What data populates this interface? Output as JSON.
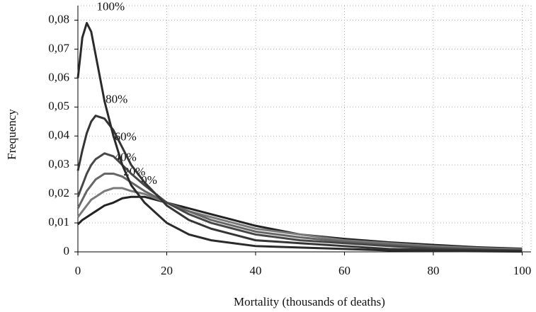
{
  "chart_data": {
    "type": "line",
    "x_label": "Mortality (thousands of deaths)",
    "y_label": "Frequency",
    "x": [
      0,
      1,
      2,
      3,
      4,
      6,
      8,
      10,
      12,
      15,
      20,
      25,
      30,
      35,
      40,
      50,
      60,
      70,
      80,
      90,
      100
    ],
    "series": [
      {
        "name": "100%",
        "color": "#2a2a2a",
        "values": [
          0.06,
          0.074,
          0.079,
          0.076,
          0.068,
          0.052,
          0.04,
          0.03,
          0.023,
          0.017,
          0.01,
          0.006,
          0.004,
          0.003,
          0.002,
          0.0015,
          0.001,
          0.0005,
          0.0003,
          0.0002,
          0.0001
        ]
      },
      {
        "name": "80%",
        "color": "#353535",
        "values": [
          0.028,
          0.035,
          0.041,
          0.045,
          0.047,
          0.046,
          0.042,
          0.036,
          0.03,
          0.024,
          0.016,
          0.011,
          0.008,
          0.006,
          0.004,
          0.003,
          0.002,
          0.001,
          0.0007,
          0.0005,
          0.0003
        ]
      },
      {
        "name": "60%",
        "color": "#474747",
        "values": [
          0.019,
          0.023,
          0.027,
          0.03,
          0.032,
          0.034,
          0.033,
          0.03,
          0.027,
          0.023,
          0.017,
          0.013,
          0.01,
          0.008,
          0.006,
          0.004,
          0.003,
          0.002,
          0.0012,
          0.0008,
          0.0005
        ]
      },
      {
        "name": "40%",
        "color": "#666666",
        "values": [
          0.015,
          0.018,
          0.021,
          0.023,
          0.025,
          0.027,
          0.027,
          0.026,
          0.024,
          0.021,
          0.017,
          0.014,
          0.011,
          0.009,
          0.007,
          0.005,
          0.0035,
          0.0025,
          0.0016,
          0.001,
          0.0007
        ]
      },
      {
        "name": "20%",
        "color": "#7a7a7a",
        "values": [
          0.012,
          0.014,
          0.016,
          0.018,
          0.019,
          0.021,
          0.022,
          0.022,
          0.021,
          0.02,
          0.017,
          0.014,
          0.012,
          0.01,
          0.008,
          0.006,
          0.004,
          0.003,
          0.002,
          0.0013,
          0.0009
        ]
      },
      {
        "name": "0%",
        "color": "#222222",
        "values": [
          0.0095,
          0.011,
          0.012,
          0.013,
          0.014,
          0.016,
          0.017,
          0.0185,
          0.019,
          0.019,
          0.017,
          0.015,
          0.013,
          0.011,
          0.009,
          0.006,
          0.0045,
          0.0033,
          0.0024,
          0.0016,
          0.0011
        ]
      }
    ],
    "xlim": [
      0,
      102
    ],
    "xticks": [
      0,
      20,
      40,
      60,
      80,
      100
    ],
    "ylim": [
      0,
      0.085
    ],
    "yticks": [
      0,
      {
        "value": 0.01,
        "label": "0,01"
      },
      {
        "value": 0.02,
        "label": "0,02"
      },
      {
        "value": 0.03,
        "label": "0,03"
      },
      {
        "value": 0.04,
        "label": "0,04"
      },
      {
        "value": 0.05,
        "label": "0,05"
      },
      {
        "value": 0.06,
        "label": "0,06"
      },
      {
        "value": 0.07,
        "label": "0,07"
      },
      {
        "value": 0.08,
        "label": "0,08"
      }
    ],
    "grid": true
  }
}
